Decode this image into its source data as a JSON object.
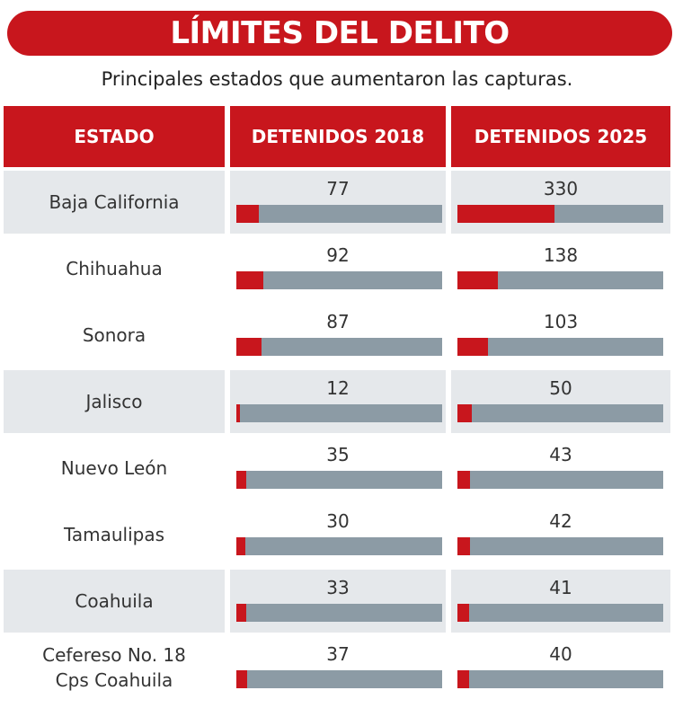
{
  "chart_data": {
    "type": "bar-table",
    "title": "LÍMITES DEL DELITO",
    "subtitle": "Principales estados que aumentaron las capturas.",
    "category_label": "ESTADO",
    "categories": [
      "Baja California",
      "Chihuahua",
      "Sonora",
      "Jalisco",
      "Nuevo León",
      "Tamaulipas",
      "Coahuila",
      "Cefereso No. 18\nCps Coahuila"
    ],
    "xlim": [
      0,
      700
    ],
    "series": [
      {
        "name": "DETENIDOS 2018",
        "color": "#c8161d",
        "values": [
          77,
          92,
          87,
          12,
          35,
          30,
          33,
          37
        ]
      },
      {
        "name": "DETENIDOS 2025",
        "color": "#c8161d",
        "values": [
          330,
          138,
          103,
          50,
          43,
          42,
          41,
          40
        ]
      }
    ]
  }
}
